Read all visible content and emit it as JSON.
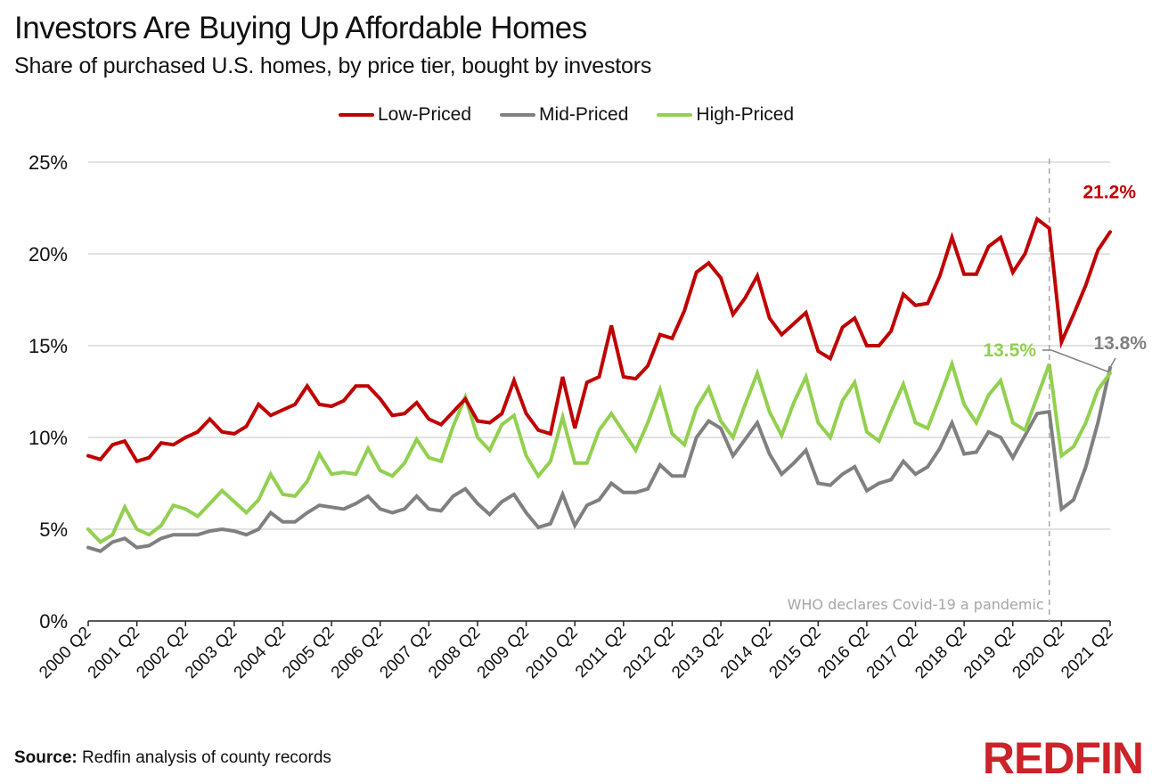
{
  "header": {
    "title": "Investors Are Buying Up Affordable Homes",
    "subtitle": "Share of purchased U.S. homes, by price tier, bought by investors"
  },
  "footer": {
    "source_label": "Source:",
    "source_text": "Redfin analysis of county records",
    "logo": "REDFIN"
  },
  "colors": {
    "low": "#c00000",
    "mid": "#808080",
    "high": "#92d050",
    "grid": "#d9d9d9",
    "annotation": "#a6a6a6",
    "logo": "#cc2229"
  },
  "chart_data": {
    "type": "line",
    "title": "Investors Are Buying Up Affordable Homes",
    "subtitle": "Share of purchased U.S. homes, by price tier, bought by investors",
    "xlabel": "",
    "ylabel": "",
    "ylim": [
      0,
      25
    ],
    "yticks": [
      "0%",
      "5%",
      "10%",
      "15%",
      "20%",
      "25%"
    ],
    "ytick_values": [
      0,
      5,
      10,
      15,
      20,
      25
    ],
    "grid": true,
    "legend_position": "top-center",
    "x_start": "2000 Q2",
    "x_end": "2021 Q2",
    "xtick_labels": [
      "2000 Q2",
      "2001 Q2",
      "2002 Q2",
      "2003 Q2",
      "2004 Q2",
      "2005 Q2",
      "2006 Q2",
      "2007 Q2",
      "2008 Q2",
      "2009 Q2",
      "2010 Q2",
      "2011 Q2",
      "2012 Q2",
      "2013 Q2",
      "2014 Q2",
      "2015 Q2",
      "2016 Q2",
      "2017 Q2",
      "2018 Q2",
      "2019 Q2",
      "2020 Q2",
      "2021 Q2"
    ],
    "series": [
      {
        "name": "Low-Priced",
        "key": "low",
        "values": [
          9.0,
          8.8,
          9.6,
          9.8,
          8.7,
          8.9,
          9.7,
          9.6,
          10.0,
          10.3,
          11.0,
          10.3,
          10.2,
          10.6,
          11.8,
          11.2,
          11.5,
          11.8,
          12.8,
          11.8,
          11.7,
          12.0,
          12.8,
          12.8,
          12.1,
          11.2,
          11.3,
          11.9,
          11.0,
          10.7,
          11.4,
          12.1,
          10.9,
          10.8,
          11.3,
          13.1,
          11.3,
          10.4,
          10.2,
          13.3,
          10.5,
          13.0,
          13.3,
          16.1,
          13.3,
          13.2,
          13.9,
          15.6,
          15.4,
          16.9,
          19.0,
          19.5,
          18.7,
          16.7,
          17.6,
          18.8,
          16.5,
          15.6,
          16.2,
          16.8,
          14.7,
          14.3,
          16.0,
          16.5,
          15.0,
          15.0,
          15.8,
          17.8,
          17.2,
          17.3,
          18.8,
          20.9,
          18.9,
          18.9,
          20.4,
          20.9,
          19.0,
          20.0,
          21.9,
          21.4,
          15.2,
          16.7,
          18.3,
          20.2,
          21.2
        ]
      },
      {
        "name": "Mid-Priced",
        "key": "mid",
        "values": [
          4.0,
          3.8,
          4.3,
          4.5,
          4.0,
          4.1,
          4.5,
          4.7,
          4.7,
          4.7,
          4.9,
          5.0,
          4.9,
          4.7,
          5.0,
          5.9,
          5.4,
          5.4,
          5.9,
          6.3,
          6.2,
          6.1,
          6.4,
          6.8,
          6.1,
          5.9,
          6.1,
          6.8,
          6.1,
          6.0,
          6.8,
          7.2,
          6.4,
          5.8,
          6.5,
          6.9,
          5.9,
          5.1,
          5.3,
          6.9,
          5.2,
          6.3,
          6.6,
          7.5,
          7.0,
          7.0,
          7.2,
          8.5,
          7.9,
          7.9,
          10.0,
          10.9,
          10.5,
          9.0,
          9.9,
          10.8,
          9.1,
          8.0,
          8.6,
          9.3,
          7.5,
          7.4,
          8.0,
          8.4,
          7.1,
          7.5,
          7.7,
          8.7,
          8.0,
          8.4,
          9.4,
          10.8,
          9.1,
          9.2,
          10.3,
          10.0,
          8.9,
          10.1,
          11.3,
          11.4,
          6.1,
          6.6,
          8.4,
          10.8,
          13.8
        ]
      },
      {
        "name": "High-Priced",
        "key": "high",
        "values": [
          5.0,
          4.3,
          4.7,
          6.2,
          5.0,
          4.7,
          5.2,
          6.3,
          6.1,
          5.7,
          6.4,
          7.1,
          6.5,
          5.9,
          6.6,
          8.0,
          6.9,
          6.8,
          7.6,
          9.1,
          8.0,
          8.1,
          8.0,
          9.4,
          8.2,
          7.9,
          8.6,
          9.9,
          8.9,
          8.7,
          10.6,
          12.2,
          10.0,
          9.3,
          10.7,
          11.2,
          9.0,
          7.9,
          8.7,
          11.1,
          8.6,
          8.6,
          10.4,
          11.3,
          10.3,
          9.3,
          10.8,
          12.6,
          10.2,
          9.6,
          11.6,
          12.7,
          10.9,
          10.0,
          11.8,
          13.5,
          11.4,
          10.1,
          11.9,
          13.3,
          10.8,
          10.0,
          12.0,
          13.0,
          10.3,
          9.8,
          11.4,
          12.9,
          10.8,
          10.5,
          12.2,
          14.0,
          11.8,
          10.8,
          12.3,
          13.1,
          10.8,
          10.4,
          12.2,
          14.0,
          9.0,
          9.5,
          10.8,
          12.6,
          13.5
        ]
      }
    ],
    "annotations": [
      {
        "text": "21.2%",
        "series": "Low-Priced",
        "at": "2021 Q2"
      },
      {
        "text": "13.5%",
        "series": "High-Priced",
        "at": "2021 Q2"
      },
      {
        "text": "13.8%",
        "series": "Mid-Priced",
        "at": "2021 Q2"
      },
      {
        "text": "WHO declares Covid-19 a pandemic",
        "type": "vertical-dashed-line",
        "at": "2020 Q1"
      }
    ]
  }
}
